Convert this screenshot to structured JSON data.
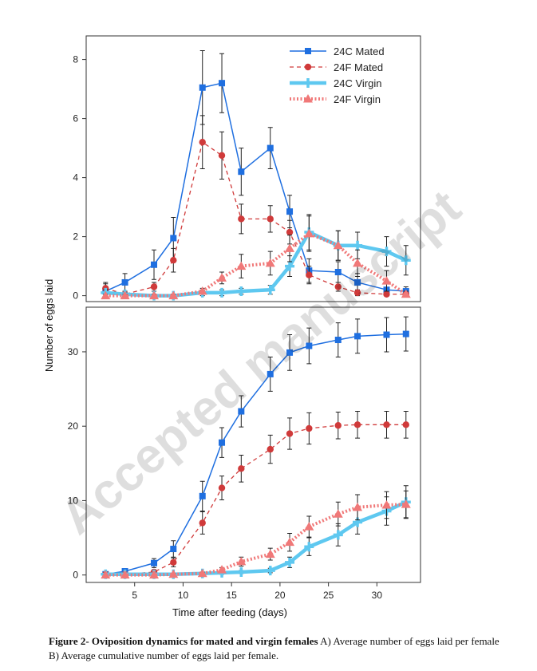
{
  "chart_data": [
    {
      "type": "line",
      "panel": "top",
      "xlabel": "",
      "ylabel": "",
      "xlim": [
        0,
        34.5
      ],
      "ylim": [
        -0.2,
        8.8
      ],
      "yticks": [
        0,
        2,
        4,
        6,
        8
      ],
      "grid": false,
      "legend": "top-right",
      "series": [
        {
          "name": "24C Mated",
          "color": "#1f6fe0",
          "style": "solid-square",
          "x": [
            2,
            4,
            7,
            9,
            12,
            14,
            16,
            19,
            21,
            23,
            26,
            28,
            31,
            33
          ],
          "y": [
            0.15,
            0.45,
            1.05,
            1.95,
            7.05,
            7.2,
            4.2,
            5.0,
            2.85,
            0.85,
            0.8,
            0.45,
            0.2,
            0.15
          ],
          "err": [
            0.25,
            0.3,
            0.5,
            0.7,
            1.25,
            1.0,
            0.8,
            0.7,
            0.55,
            0.4,
            0.35,
            0.3,
            0.2,
            0.15
          ]
        },
        {
          "name": "24F Mated",
          "color": "#d03a3a",
          "style": "dashed-circle",
          "x": [
            2,
            4,
            7,
            9,
            12,
            14,
            16,
            19,
            21,
            23,
            26,
            28,
            31,
            33
          ],
          "y": [
            0.25,
            0.05,
            0.3,
            1.2,
            5.2,
            4.75,
            2.6,
            2.6,
            2.15,
            0.7,
            0.3,
            0.1,
            0.05,
            0.05
          ],
          "err": [
            0.2,
            0.1,
            0.15,
            0.4,
            0.9,
            0.8,
            0.5,
            0.45,
            0.4,
            0.3,
            0.15,
            0.1,
            0.05,
            0.05
          ]
        },
        {
          "name": "24C Virgin",
          "color": "#5ec8f0",
          "style": "thick-cross",
          "x": [
            2,
            4,
            7,
            9,
            12,
            14,
            16,
            19,
            21,
            23,
            26,
            28,
            31,
            33
          ],
          "y": [
            0.1,
            0.05,
            0.0,
            0.0,
            0.1,
            0.1,
            0.15,
            0.2,
            1.0,
            2.15,
            1.7,
            1.7,
            1.5,
            1.2
          ],
          "err": [
            0.1,
            0.05,
            0.05,
            0.05,
            0.1,
            0.1,
            0.1,
            0.15,
            0.35,
            0.6,
            0.5,
            0.45,
            0.5,
            0.5
          ]
        },
        {
          "name": "24F Virgin",
          "color": "#f07878",
          "style": "dotted-triangle",
          "x": [
            2,
            4,
            7,
            9,
            12,
            14,
            16,
            19,
            21,
            23,
            26,
            28,
            31,
            33
          ],
          "y": [
            0.0,
            0.0,
            0.0,
            0.0,
            0.15,
            0.6,
            1.0,
            1.1,
            1.6,
            2.1,
            1.7,
            1.1,
            0.5,
            0.05
          ],
          "err": [
            0.05,
            0.05,
            0.05,
            0.05,
            0.1,
            0.2,
            0.4,
            0.4,
            0.45,
            0.6,
            0.5,
            0.45,
            0.35,
            0.1
          ]
        }
      ]
    },
    {
      "type": "line",
      "panel": "bottom",
      "xlabel": "",
      "ylabel": "",
      "xlim": [
        0,
        34.5
      ],
      "ylim": [
        -1,
        36
      ],
      "yticks": [
        0,
        10,
        20,
        30
      ],
      "xticks": [
        5,
        10,
        15,
        20,
        25,
        30
      ],
      "grid": false,
      "series": [
        {
          "name": "24C Mated",
          "color": "#1f6fe0",
          "style": "solid-square",
          "x": [
            2,
            4,
            7,
            9,
            12,
            14,
            16,
            19,
            21,
            23,
            26,
            28,
            31,
            33
          ],
          "y": [
            0.1,
            0.5,
            1.6,
            3.5,
            10.6,
            17.8,
            22.0,
            27.0,
            29.9,
            30.8,
            31.6,
            32.1,
            32.3,
            32.4
          ],
          "err": [
            0.1,
            0.3,
            0.6,
            1.1,
            2.0,
            2.0,
            2.1,
            2.3,
            2.4,
            2.4,
            2.3,
            2.3,
            2.3,
            2.3
          ]
        },
        {
          "name": "24F Mated",
          "color": "#d03a3a",
          "style": "dashed-circle",
          "x": [
            2,
            4,
            7,
            9,
            12,
            14,
            16,
            19,
            21,
            23,
            26,
            28,
            31,
            33
          ],
          "y": [
            0.1,
            0.1,
            0.4,
            1.7,
            7.0,
            11.7,
            14.3,
            16.9,
            19.0,
            19.7,
            20.1,
            20.2,
            20.2,
            20.2
          ],
          "err": [
            0.1,
            0.1,
            0.3,
            0.6,
            1.5,
            1.6,
            1.8,
            1.9,
            2.1,
            2.1,
            1.8,
            1.8,
            1.8,
            1.8
          ]
        },
        {
          "name": "24C Virgin",
          "color": "#5ec8f0",
          "style": "thick-cross",
          "x": [
            2,
            4,
            7,
            9,
            12,
            14,
            16,
            19,
            21,
            23,
            26,
            28,
            31,
            33
          ],
          "y": [
            0.1,
            0.1,
            0.1,
            0.1,
            0.2,
            0.3,
            0.4,
            0.6,
            1.7,
            3.8,
            5.4,
            7.1,
            8.6,
            9.8
          ],
          "err": [
            0.1,
            0.1,
            0.1,
            0.1,
            0.1,
            0.2,
            0.2,
            0.3,
            0.7,
            1.2,
            1.5,
            1.6,
            1.9,
            2.2
          ]
        },
        {
          "name": "24F Virgin",
          "color": "#f07878",
          "style": "dotted-triangle",
          "x": [
            2,
            4,
            7,
            9,
            12,
            14,
            16,
            19,
            21,
            23,
            26,
            28,
            31,
            33
          ],
          "y": [
            0.0,
            0.0,
            0.0,
            0.1,
            0.2,
            0.7,
            1.8,
            2.8,
            4.4,
            6.5,
            8.2,
            9.1,
            9.4,
            9.5
          ],
          "err": [
            0.05,
            0.05,
            0.05,
            0.1,
            0.2,
            0.3,
            0.6,
            0.8,
            1.2,
            1.4,
            1.6,
            1.7,
            1.8,
            1.8
          ]
        }
      ]
    }
  ],
  "axes": {
    "shared_xlabel": "Time after feeding (days)",
    "shared_ylabel": "Number of eggs laid"
  },
  "watermark": "Accepted manuscript",
  "caption": {
    "title": "Figure 2- Oviposition dynamics for mated and virgin females",
    "text": " A) Average number of eggs laid per female B) Average cumulative number of eggs laid per female."
  }
}
